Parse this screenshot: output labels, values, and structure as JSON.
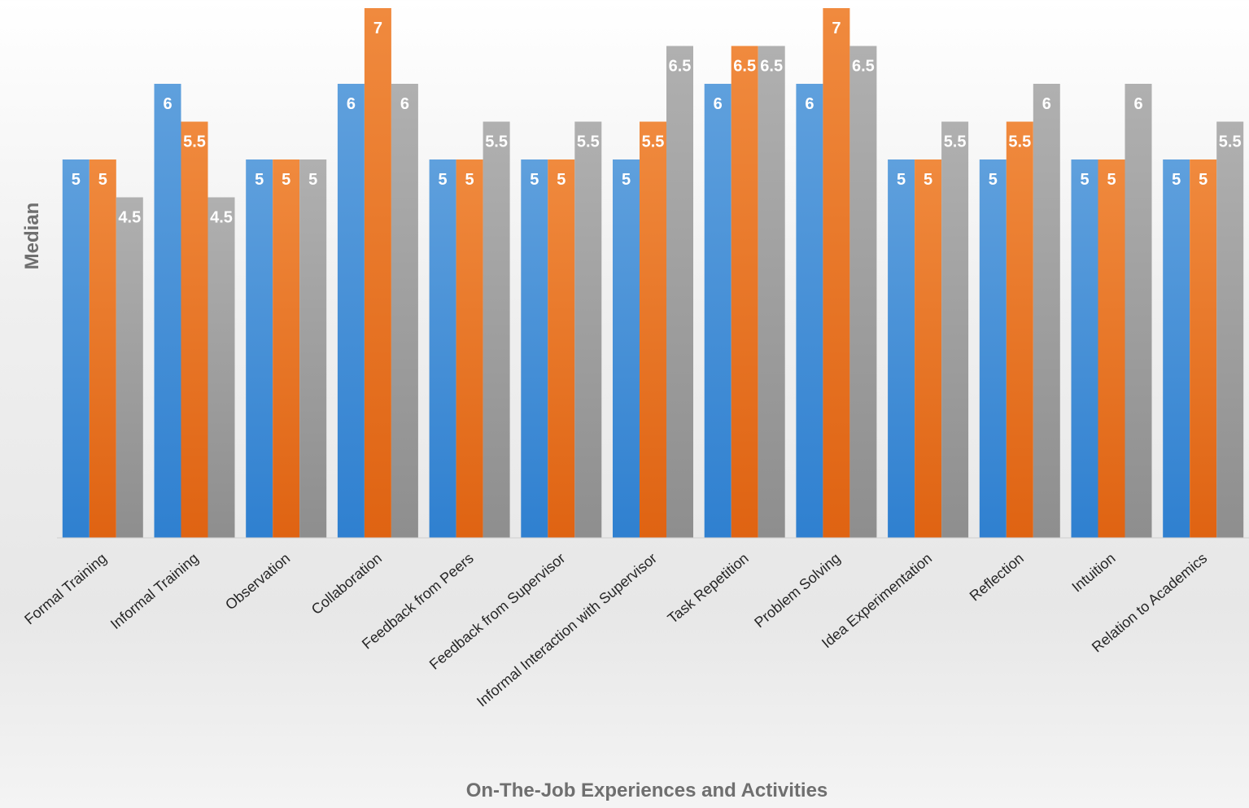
{
  "chart_data": {
    "type": "bar",
    "xlabel": "On-The-Job Experiences and Activities",
    "ylabel": "Median",
    "categories": [
      "Formal Training",
      "Informal Training",
      "Observation",
      "Collaboration",
      "Feedback from Peers",
      "Feedback from Supervisor",
      "Informal Interaction with Supervisor",
      "Task Repetition",
      "Problem Solving",
      "Idea Experimentation",
      "Reflection",
      "Intuition",
      "Relation to Academics"
    ],
    "series": [
      {
        "color": "#4a90d9",
        "values": [
          5,
          6,
          5,
          6,
          5,
          5,
          5,
          6,
          6,
          5,
          5,
          5,
          5
        ]
      },
      {
        "color": "#ed7d31",
        "values": [
          5,
          5.5,
          5,
          7,
          5,
          5,
          5.5,
          6.5,
          7,
          5,
          5.5,
          5,
          5
        ]
      },
      {
        "color": "#a5a5a5",
        "values": [
          4.5,
          4.5,
          5,
          6,
          5.5,
          5.5,
          6.5,
          6.5,
          6.5,
          5.5,
          6,
          6,
          5.5
        ]
      }
    ],
    "ylim": [
      0,
      7
    ],
    "data_labels": true,
    "grid": false,
    "legend": "none"
  }
}
